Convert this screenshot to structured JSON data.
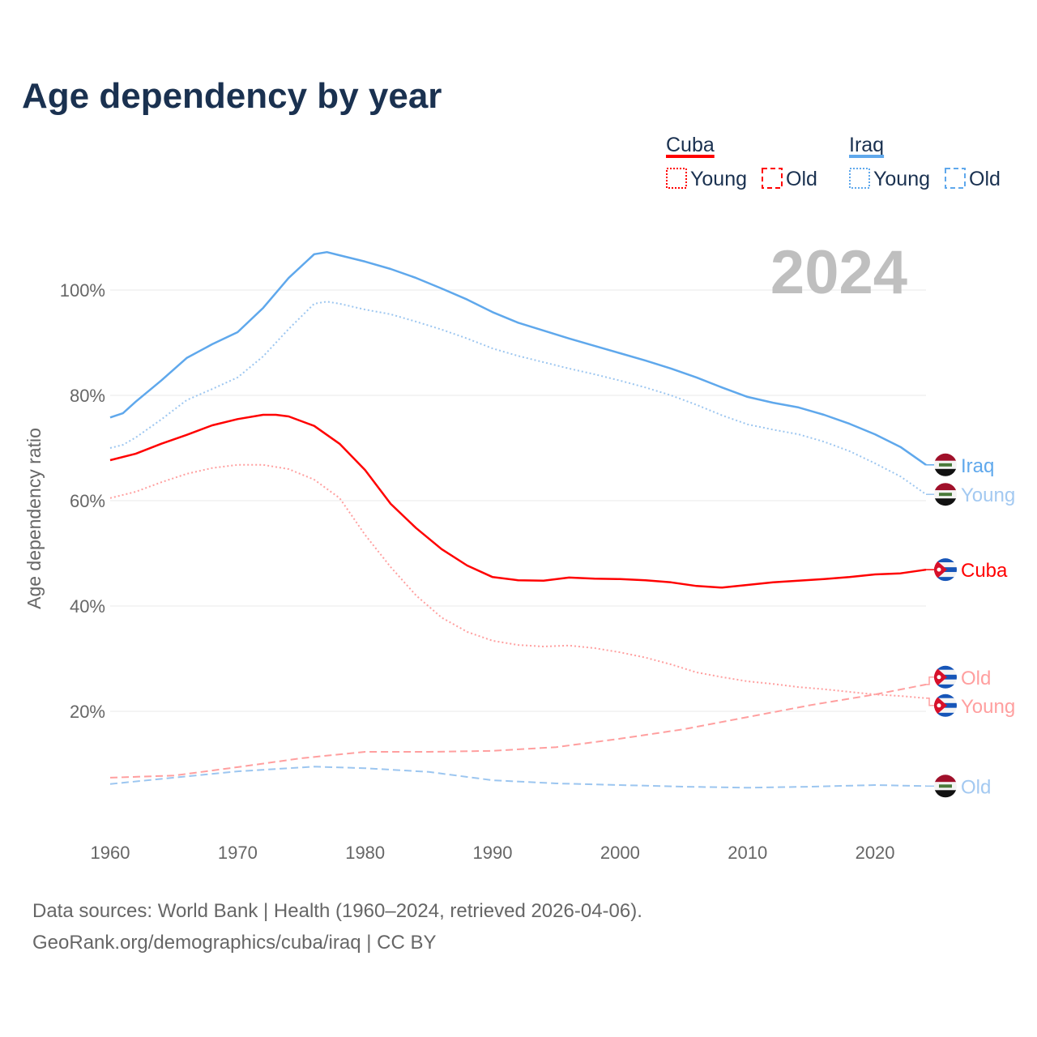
{
  "chart_data": {
    "type": "line",
    "title": "Age dependency by year",
    "ylabel": "Age dependency ratio",
    "xlabel": "",
    "year_label": "2024",
    "xlim": [
      1960,
      2024
    ],
    "ylim": [
      0,
      110
    ],
    "x_ticks": [
      1960,
      1970,
      1980,
      1990,
      2000,
      2010,
      2020
    ],
    "y_ticks": [
      {
        "v": 20,
        "label": "20%"
      },
      {
        "v": 40,
        "label": "40%"
      },
      {
        "v": 60,
        "label": "60%"
      },
      {
        "v": 80,
        "label": "80%"
      },
      {
        "v": 100,
        "label": "100%"
      }
    ],
    "grid": true,
    "legend": {
      "placement": "top-right",
      "groups": [
        {
          "name": "Cuba",
          "color": "#ff0000",
          "items": [
            {
              "label": "Young",
              "style": "dotted"
            },
            {
              "label": "Old",
              "style": "dashed"
            }
          ]
        },
        {
          "name": "Iraq",
          "color": "#5fa8ec",
          "items": [
            {
              "label": "Young",
              "style": "dotted"
            },
            {
              "label": "Old",
              "style": "dashed"
            }
          ]
        }
      ]
    },
    "series": [
      {
        "name": "Iraq",
        "end_label": "Iraq",
        "flag": "iraq",
        "color": "#5fa8ec",
        "label_color": "#5fa8ec",
        "style": "solid",
        "points": [
          [
            1960,
            75.8
          ],
          [
            1961,
            76.6
          ],
          [
            1962,
            78.8
          ],
          [
            1964,
            82.8
          ],
          [
            1966,
            87.1
          ],
          [
            1968,
            89.7
          ],
          [
            1970,
            92
          ],
          [
            1972,
            96.6
          ],
          [
            1974,
            102.3
          ],
          [
            1976,
            106.8
          ],
          [
            1977,
            107.2
          ],
          [
            1978,
            106.6
          ],
          [
            1980,
            105.4
          ],
          [
            1982,
            104
          ],
          [
            1984,
            102.3
          ],
          [
            1986,
            100.3
          ],
          [
            1988,
            98.2
          ],
          [
            1990,
            95.8
          ],
          [
            1992,
            93.8
          ],
          [
            1994,
            92.3
          ],
          [
            1996,
            90.8
          ],
          [
            1998,
            89.4
          ],
          [
            2000,
            88
          ],
          [
            2002,
            86.6
          ],
          [
            2004,
            85.1
          ],
          [
            2006,
            83.4
          ],
          [
            2008,
            81.5
          ],
          [
            2010,
            79.7
          ],
          [
            2012,
            78.6
          ],
          [
            2014,
            77.7
          ],
          [
            2016,
            76.3
          ],
          [
            2018,
            74.6
          ],
          [
            2020,
            72.6
          ],
          [
            2022,
            70.2
          ],
          [
            2024,
            66.8
          ]
        ]
      },
      {
        "name": "Iraq Young",
        "end_label": "Young",
        "flag": "iraq",
        "color": "#9cc6f0",
        "label_color": "#a3c9f1",
        "style": "dotted",
        "points": [
          [
            1960,
            70
          ],
          [
            1961,
            70.6
          ],
          [
            1962,
            72
          ],
          [
            1964,
            75.4
          ],
          [
            1966,
            79.1
          ],
          [
            1968,
            81.2
          ],
          [
            1970,
            83.4
          ],
          [
            1972,
            87.4
          ],
          [
            1974,
            92.6
          ],
          [
            1976,
            97.4
          ],
          [
            1977,
            97.8
          ],
          [
            1978,
            97.4
          ],
          [
            1980,
            96.3
          ],
          [
            1982,
            95.4
          ],
          [
            1984,
            94
          ],
          [
            1986,
            92.5
          ],
          [
            1988,
            90.8
          ],
          [
            1990,
            88.9
          ],
          [
            1992,
            87.5
          ],
          [
            1994,
            86.3
          ],
          [
            1996,
            85.1
          ],
          [
            1998,
            84
          ],
          [
            2000,
            82.8
          ],
          [
            2002,
            81.5
          ],
          [
            2004,
            80
          ],
          [
            2006,
            78.2
          ],
          [
            2008,
            76.2
          ],
          [
            2010,
            74.5
          ],
          [
            2012,
            73.5
          ],
          [
            2014,
            72.6
          ],
          [
            2016,
            71.2
          ],
          [
            2018,
            69.4
          ],
          [
            2020,
            67.1
          ],
          [
            2022,
            64.6
          ],
          [
            2024,
            61.2
          ]
        ]
      },
      {
        "name": "Cuba",
        "end_label": "Cuba",
        "flag": "cuba",
        "color": "#ff0000",
        "label_color": "#ff0000",
        "style": "solid",
        "points": [
          [
            1960,
            67.7
          ],
          [
            1962,
            68.9
          ],
          [
            1964,
            70.8
          ],
          [
            1966,
            72.5
          ],
          [
            1968,
            74.3
          ],
          [
            1970,
            75.5
          ],
          [
            1972,
            76.3
          ],
          [
            1973,
            76.3
          ],
          [
            1974,
            76
          ],
          [
            1976,
            74.2
          ],
          [
            1978,
            70.8
          ],
          [
            1980,
            65.8
          ],
          [
            1982,
            59.4
          ],
          [
            1984,
            54.8
          ],
          [
            1986,
            50.8
          ],
          [
            1988,
            47.7
          ],
          [
            1990,
            45.5
          ],
          [
            1992,
            44.9
          ],
          [
            1994,
            44.8
          ],
          [
            1996,
            45.4
          ],
          [
            1998,
            45.2
          ],
          [
            2000,
            45.1
          ],
          [
            2002,
            44.9
          ],
          [
            2004,
            44.5
          ],
          [
            2006,
            43.8
          ],
          [
            2008,
            43.5
          ],
          [
            2010,
            44
          ],
          [
            2012,
            44.5
          ],
          [
            2014,
            44.8
          ],
          [
            2016,
            45.1
          ],
          [
            2018,
            45.5
          ],
          [
            2020,
            46
          ],
          [
            2022,
            46.2
          ],
          [
            2024,
            46.9
          ]
        ]
      },
      {
        "name": "Cuba Old",
        "end_label": "Old",
        "flag": "cuba",
        "color": "#ff9f9f",
        "label_color": "#ff9f9f",
        "style": "dashed",
        "points": [
          [
            1960,
            7.4
          ],
          [
            1965,
            7.8
          ],
          [
            1970,
            9.4
          ],
          [
            1975,
            11.1
          ],
          [
            1980,
            12.3
          ],
          [
            1985,
            12.3
          ],
          [
            1990,
            12.5
          ],
          [
            1995,
            13.2
          ],
          [
            2000,
            14.8
          ],
          [
            2005,
            16.6
          ],
          [
            2010,
            18.9
          ],
          [
            2015,
            21.2
          ],
          [
            2020,
            23.2
          ],
          [
            2024,
            25.1
          ]
        ]
      },
      {
        "name": "Cuba Young",
        "end_label": "Young",
        "flag": "cuba",
        "color": "#ff9f9f",
        "label_color": "#ff9f9f",
        "style": "dotted",
        "points": [
          [
            1960,
            60.5
          ],
          [
            1962,
            61.7
          ],
          [
            1964,
            63.5
          ],
          [
            1966,
            65.1
          ],
          [
            1968,
            66.2
          ],
          [
            1970,
            66.8
          ],
          [
            1972,
            66.8
          ],
          [
            1974,
            66
          ],
          [
            1976,
            64
          ],
          [
            1978,
            60.5
          ],
          [
            1980,
            53.5
          ],
          [
            1982,
            47.4
          ],
          [
            1984,
            42
          ],
          [
            1986,
            37.8
          ],
          [
            1988,
            35.1
          ],
          [
            1990,
            33.4
          ],
          [
            1992,
            32.6
          ],
          [
            1994,
            32.3
          ],
          [
            1996,
            32.5
          ],
          [
            1998,
            32
          ],
          [
            2000,
            31.2
          ],
          [
            2002,
            30.2
          ],
          [
            2004,
            28.9
          ],
          [
            2006,
            27.4
          ],
          [
            2008,
            26.5
          ],
          [
            2010,
            25.7
          ],
          [
            2012,
            25.2
          ],
          [
            2014,
            24.6
          ],
          [
            2016,
            24.2
          ],
          [
            2018,
            23.7
          ],
          [
            2020,
            23.2
          ],
          [
            2022,
            22.9
          ],
          [
            2024,
            22.5
          ]
        ]
      },
      {
        "name": "Iraq Old",
        "end_label": "Old",
        "flag": "iraq",
        "color": "#9cc6f0",
        "label_color": "#a3c9f1",
        "style": "dashed",
        "points": [
          [
            1960,
            6.2
          ],
          [
            1965,
            7.4
          ],
          [
            1970,
            8.6
          ],
          [
            1976,
            9.5
          ],
          [
            1980,
            9.2
          ],
          [
            1985,
            8.5
          ],
          [
            1990,
            6.9
          ],
          [
            1995,
            6.3
          ],
          [
            2000,
            6
          ],
          [
            2005,
            5.7
          ],
          [
            2010,
            5.5
          ],
          [
            2015,
            5.7
          ],
          [
            2020,
            6
          ],
          [
            2024,
            5.8
          ]
        ]
      }
    ]
  },
  "footer": {
    "line1": "Data sources: World Bank | Health (1960–2024, retrieved 2026-04-06).",
    "line2": "GeoRank.org/demographics/cuba/iraq | CC BY"
  }
}
